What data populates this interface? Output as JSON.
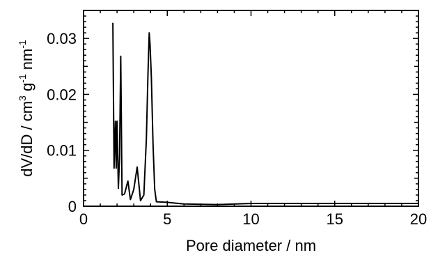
{
  "chart_data": {
    "type": "line",
    "title": "",
    "xlabel": "Pore diameter / nm",
    "ylabel": {
      "parts": [
        {
          "text": "dV/dD / cm",
          "sup": false
        },
        {
          "text": "3",
          "sup": true
        },
        {
          "text": " g",
          "sup": false
        },
        {
          "text": "-1",
          "sup": true
        },
        {
          "text": " nm",
          "sup": false
        },
        {
          "text": "-1",
          "sup": true
        }
      ]
    },
    "xlim": [
      0,
      20
    ],
    "ylim": [
      0,
      0.035
    ],
    "x_ticks": [
      {
        "value": 0,
        "label": "0"
      },
      {
        "value": 5,
        "label": "5"
      },
      {
        "value": 10,
        "label": "10"
      },
      {
        "value": 15,
        "label": "15"
      },
      {
        "value": 20,
        "label": "20"
      }
    ],
    "y_ticks": [
      {
        "value": 0,
        "label": "0"
      },
      {
        "value": 0.01,
        "label": "0.01"
      },
      {
        "value": 0.02,
        "label": "0.02"
      },
      {
        "value": 0.03,
        "label": "0.03"
      }
    ],
    "grid": false,
    "legend": "none",
    "line_color": "#000000",
    "series": [
      {
        "x": [
          1.75,
          1.82,
          1.9,
          1.95,
          2.0,
          2.08,
          2.15,
          2.22,
          2.3,
          2.45,
          2.65,
          2.8,
          3.0,
          3.2,
          3.4,
          3.6,
          3.75,
          3.85,
          3.92,
          3.97,
          4.05,
          4.15,
          4.25,
          4.35,
          5.0,
          6.0,
          8.0,
          10.0,
          12.0,
          15.0,
          18.0,
          20.0
        ],
        "y": [
          0.0328,
          0.0068,
          0.0152,
          0.0068,
          0.0152,
          0.0032,
          0.0088,
          0.0268,
          0.002,
          0.0022,
          0.0045,
          0.0012,
          0.003,
          0.007,
          0.001,
          0.002,
          0.012,
          0.024,
          0.031,
          0.029,
          0.023,
          0.011,
          0.003,
          0.0008,
          0.0007,
          0.0004,
          0.0003,
          0.0005,
          0.0005,
          0.0005,
          0.0005,
          0.0005
        ]
      }
    ]
  }
}
